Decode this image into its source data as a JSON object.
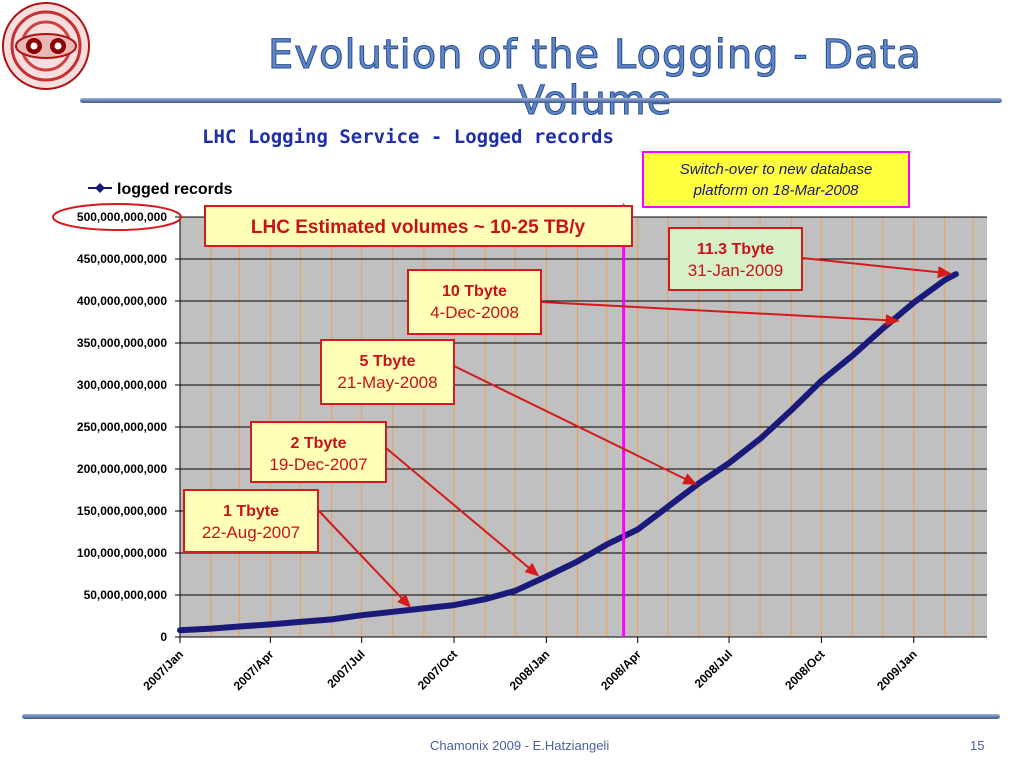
{
  "slide": {
    "title": "Evolution of the Logging - Data Volume",
    "footer": "Chamonix 2009 - E.Hatziangeli",
    "page_number": "15"
  },
  "colors": {
    "series": "#1a1a7a",
    "plot_background": "#c0c0c0",
    "annotation_red": "#d41a1a",
    "switch_line": "#ff00ff",
    "box_yellow": "#ffffb8",
    "box_green": "#d8f0c8"
  },
  "logo": {
    "icon": "lhc-magnet-cross-section-icon"
  },
  "chart_data": {
    "type": "line",
    "title": "LHC Logging Service - Logged records",
    "legend": {
      "label": "logged records",
      "position": "top-left"
    },
    "grid": {
      "horizontal": true,
      "vertical": true
    },
    "x_axis": {
      "type": "date",
      "range": [
        "2007-01-01",
        "2009-03-15"
      ],
      "tick_labels": [
        "2007/Jan",
        "2007/Apr",
        "2007/Jul",
        "2007/Oct",
        "2008/Jan",
        "2008/Apr",
        "2008/Jul",
        "2008/Oct",
        "2009/Jan"
      ],
      "tick_dates": [
        "2007-01-01",
        "2007-04-01",
        "2007-07-01",
        "2007-10-01",
        "2008-01-01",
        "2008-04-01",
        "2008-07-01",
        "2008-10-01",
        "2009-01-01"
      ]
    },
    "y_axis": {
      "range": [
        0,
        500000000000
      ],
      "tick_values": [
        0,
        50000000000,
        100000000000,
        150000000000,
        200000000000,
        250000000000,
        300000000000,
        350000000000,
        400000000000,
        450000000000,
        500000000000
      ],
      "tick_labels": [
        "0",
        "50,000,000,000",
        "100,000,000,000",
        "150,000,000,000",
        "200,000,000,000",
        "250,000,000,000",
        "300,000,000,000",
        "350,000,000,000",
        "400,000,000,000",
        "450,000,000,000",
        "500,000,000,000"
      ]
    },
    "series": [
      {
        "name": "logged records",
        "points": [
          {
            "x": "2007-01-01",
            "y": 8000000000
          },
          {
            "x": "2007-02-01",
            "y": 10000000000
          },
          {
            "x": "2007-03-01",
            "y": 12500000000
          },
          {
            "x": "2007-04-01",
            "y": 15000000000
          },
          {
            "x": "2007-05-01",
            "y": 18000000000
          },
          {
            "x": "2007-06-01",
            "y": 21000000000
          },
          {
            "x": "2007-07-01",
            "y": 26000000000
          },
          {
            "x": "2007-08-01",
            "y": 30000000000
          },
          {
            "x": "2007-09-01",
            "y": 34000000000
          },
          {
            "x": "2007-10-01",
            "y": 38000000000
          },
          {
            "x": "2007-11-01",
            "y": 45000000000
          },
          {
            "x": "2007-12-01",
            "y": 55000000000
          },
          {
            "x": "2008-01-01",
            "y": 72000000000
          },
          {
            "x": "2008-02-01",
            "y": 90000000000
          },
          {
            "x": "2008-03-01",
            "y": 110000000000
          },
          {
            "x": "2008-04-01",
            "y": 128000000000
          },
          {
            "x": "2008-05-01",
            "y": 155000000000
          },
          {
            "x": "2008-06-01",
            "y": 183000000000
          },
          {
            "x": "2008-07-01",
            "y": 207000000000
          },
          {
            "x": "2008-08-01",
            "y": 236000000000
          },
          {
            "x": "2008-09-01",
            "y": 270000000000
          },
          {
            "x": "2008-10-01",
            "y": 305000000000
          },
          {
            "x": "2008-11-01",
            "y": 335000000000
          },
          {
            "x": "2008-12-01",
            "y": 367000000000
          },
          {
            "x": "2009-01-01",
            "y": 398000000000
          },
          {
            "x": "2009-02-01",
            "y": 425000000000
          },
          {
            "x": "2009-02-12",
            "y": 432000000000
          }
        ]
      }
    ],
    "annotations": [
      {
        "label": "1 Tbyte",
        "date_label": "22-Aug-2007",
        "target_date": "2007-08-22",
        "target_value": 31000000000
      },
      {
        "label": "2 Tbyte",
        "date_label": "19-Dec-2007",
        "target_date": "2007-12-28",
        "target_value": 69000000000
      },
      {
        "label": "5 Tbyte",
        "date_label": "21-May-2008",
        "target_date": "2008-06-03",
        "target_value": 179000000000
      },
      {
        "label": "10 Tbyte",
        "date_label": "4-Dec-2008",
        "target_date": "2008-12-22",
        "target_value": 376000000000
      },
      {
        "label": "11.3 Tbyte",
        "date_label": "31-Jan-2009",
        "target_date": "2009-02-12",
        "target_value": 432000000000
      }
    ],
    "estimate_box": "LHC Estimated volumes ~ 10-25 TB/y",
    "switchover": {
      "label_line1": "Switch-over to new database",
      "label_line2": "platform on 18-Mar-2008",
      "date": "2008-03-18"
    },
    "highlighted_tick": "500,000,000,000"
  }
}
